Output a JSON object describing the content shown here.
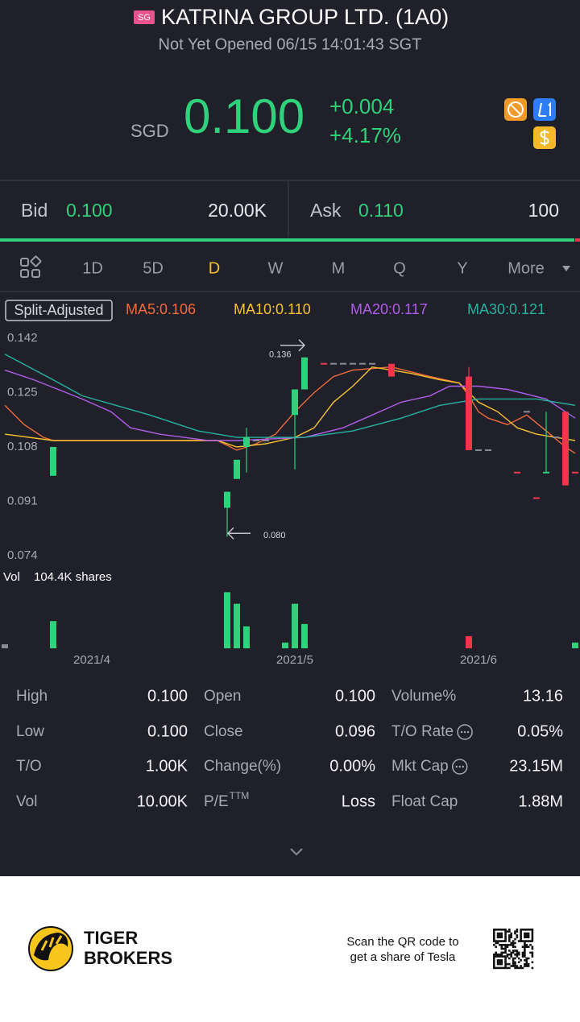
{
  "header": {
    "badge": "SG",
    "title": "KATRINA GROUP LTD. (1A0)",
    "status": "Not Yet Opened 06/15 14:01:43 SGT"
  },
  "quote": {
    "currency": "SGD",
    "price": "0.100",
    "change": "+0.004",
    "change_pct": "+4.17%"
  },
  "bid_ask": {
    "bid_label": "Bid",
    "bid": "0.100",
    "bid_size": "20.00K",
    "ask_label": "Ask",
    "ask": "0.110",
    "ask_size": "100"
  },
  "tabs": [
    "1D",
    "5D",
    "D",
    "W",
    "M",
    "Q",
    "Y",
    "More"
  ],
  "active_tab": 2,
  "chart_data": {
    "type": "candlestick",
    "split_label": "Split-Adjusted",
    "xlim": [
      -0.5,
      59.5
    ],
    "xticks": [
      {
        "value": 9,
        "label": "2021/4"
      },
      {
        "value": 30,
        "label": "2021/5"
      },
      {
        "value": 49,
        "label": "2021/6"
      }
    ],
    "ylim": [
      0.072,
      0.145
    ],
    "yticks": [
      0.142,
      0.125,
      0.108,
      0.091,
      0.074
    ],
    "annotations": [
      {
        "text": "0.136",
        "x": 31,
        "y": 0.136
      },
      {
        "text": "0.080",
        "x": 23,
        "y": 0.08
      }
    ],
    "candles": [
      {
        "x": 5,
        "open": 0.099,
        "high": 0.108,
        "low": 0.099,
        "close": 0.108,
        "color": "#2fd27a"
      },
      {
        "x": 23,
        "open": 0.089,
        "high": 0.094,
        "low": 0.08,
        "close": 0.094,
        "color": "#2fd27a"
      },
      {
        "x": 24,
        "open": 0.098,
        "high": 0.104,
        "low": 0.098,
        "close": 0.104,
        "color": "#2fd27a"
      },
      {
        "x": 25,
        "open": 0.108,
        "high": 0.114,
        "low": 0.1,
        "close": 0.111,
        "color": "#2fd27a"
      },
      {
        "x": 26,
        "open": 0.11,
        "high": 0.11,
        "low": 0.11,
        "close": 0.11,
        "color": "#8a8b93"
      },
      {
        "x": 27,
        "open": 0.11,
        "high": 0.11,
        "low": 0.11,
        "close": 0.11,
        "color": "#8a8b93"
      },
      {
        "x": 30,
        "open": 0.118,
        "high": 0.126,
        "low": 0.101,
        "close": 0.126,
        "color": "#2fd27a"
      },
      {
        "x": 31,
        "open": 0.126,
        "high": 0.136,
        "low": 0.126,
        "close": 0.136,
        "color": "#2fd27a"
      },
      {
        "x": 33,
        "open": 0.134,
        "high": 0.134,
        "low": 0.134,
        "close": 0.134,
        "color": "#f0364a"
      },
      {
        "x": 34,
        "open": 0.134,
        "high": 0.134,
        "low": 0.134,
        "close": 0.134,
        "color": "#8a8b93"
      },
      {
        "x": 35,
        "open": 0.134,
        "high": 0.134,
        "low": 0.134,
        "close": 0.134,
        "color": "#8a8b93"
      },
      {
        "x": 36,
        "open": 0.134,
        "high": 0.134,
        "low": 0.134,
        "close": 0.134,
        "color": "#8a8b93"
      },
      {
        "x": 37,
        "open": 0.134,
        "high": 0.134,
        "low": 0.134,
        "close": 0.134,
        "color": "#8a8b93"
      },
      {
        "x": 38,
        "open": 0.134,
        "high": 0.134,
        "low": 0.134,
        "close": 0.134,
        "color": "#8a8b93"
      },
      {
        "x": 40,
        "open": 0.134,
        "high": 0.134,
        "low": 0.13,
        "close": 0.13,
        "color": "#f0364a"
      },
      {
        "x": 48,
        "open": 0.13,
        "high": 0.133,
        "low": 0.107,
        "close": 0.107,
        "color": "#f0364a"
      },
      {
        "x": 49,
        "open": 0.107,
        "high": 0.107,
        "low": 0.107,
        "close": 0.107,
        "color": "#8a8b93"
      },
      {
        "x": 50,
        "open": 0.107,
        "high": 0.107,
        "low": 0.107,
        "close": 0.107,
        "color": "#8a8b93"
      },
      {
        "x": 53,
        "open": 0.1,
        "high": 0.1,
        "low": 0.1,
        "close": 0.1,
        "color": "#f0364a"
      },
      {
        "x": 54,
        "open": 0.119,
        "high": 0.119,
        "low": 0.119,
        "close": 0.119,
        "color": "#8a8b93"
      },
      {
        "x": 55,
        "open": 0.092,
        "high": 0.092,
        "low": 0.092,
        "close": 0.092,
        "color": "#f0364a"
      },
      {
        "x": 56,
        "open": 0.1,
        "high": 0.119,
        "low": 0.1,
        "close": 0.1,
        "color": "#2fd27a"
      },
      {
        "x": 57,
        "open": 0.111,
        "high": 0.111,
        "low": 0.111,
        "close": 0.111,
        "color": "#8a8b93"
      },
      {
        "x": 58,
        "open": 0.119,
        "high": 0.119,
        "low": 0.096,
        "close": 0.096,
        "color": "#f0364a"
      },
      {
        "x": 59,
        "open": 0.1,
        "high": 0.1,
        "low": 0.1,
        "close": 0.1,
        "color": "#f0364a"
      }
    ],
    "series": [
      {
        "name": "MA5:0.106",
        "color": "#f26b3a",
        "x": [
          0,
          2,
          4,
          5,
          22,
          24,
          26,
          28,
          30,
          32,
          34,
          36,
          40,
          44,
          47,
          48,
          49,
          50,
          52,
          54,
          56,
          58,
          59
        ],
        "values": [
          0.121,
          0.115,
          0.111,
          0.11,
          0.11,
          0.107,
          0.109,
          0.112,
          0.119,
          0.125,
          0.13,
          0.132,
          0.133,
          0.13,
          0.128,
          0.124,
          0.119,
          0.117,
          0.115,
          0.118,
          0.113,
          0.108,
          0.106
        ]
      },
      {
        "name": "MA10:0.110",
        "color": "#f7c12f",
        "x": [
          0,
          5,
          22,
          24,
          27,
          30,
          32,
          34,
          36,
          38,
          40,
          42,
          45,
          47,
          49,
          51,
          53,
          55,
          57,
          59
        ],
        "values": [
          0.112,
          0.11,
          0.11,
          0.108,
          0.109,
          0.111,
          0.114,
          0.122,
          0.127,
          0.133,
          0.132,
          0.131,
          0.129,
          0.128,
          0.122,
          0.119,
          0.114,
          0.112,
          0.111,
          0.11
        ]
      },
      {
        "name": "MA20:0.117",
        "color": "#b05ee8",
        "x": [
          0,
          3,
          8,
          11,
          13,
          16,
          21,
          24,
          31,
          35,
          38,
          41,
          44,
          46,
          49,
          52,
          56,
          59
        ],
        "values": [
          0.132,
          0.129,
          0.123,
          0.119,
          0.114,
          0.112,
          0.11,
          0.11,
          0.111,
          0.114,
          0.118,
          0.122,
          0.124,
          0.127,
          0.127,
          0.126,
          0.123,
          0.117
        ]
      },
      {
        "name": "MA30:0.121",
        "color": "#26b3a0",
        "x": [
          0,
          5,
          8,
          15,
          20,
          24,
          31,
          36,
          41,
          45,
          49,
          55,
          59
        ],
        "values": [
          0.137,
          0.129,
          0.124,
          0.118,
          0.113,
          0.111,
          0.111,
          0.113,
          0.117,
          0.121,
          0.123,
          0.123,
          0.121
        ]
      }
    ],
    "volume": {
      "label": "Vol",
      "value_label": "104.4K shares",
      "ylim": [
        0,
        104.4
      ],
      "x": [
        0,
        5,
        23,
        24,
        25,
        29,
        30,
        31,
        48,
        59
      ],
      "values": [
        7,
        47,
        97,
        77,
        38,
        10,
        77,
        42,
        21,
        10
      ],
      "colors": [
        "#8a8b93",
        "#2fd27a",
        "#2fd27a",
        "#2fd27a",
        "#2fd27a",
        "#2fd27a",
        "#2fd27a",
        "#2fd27a",
        "#f0364a",
        "#2fd27a"
      ]
    }
  },
  "stats": [
    [
      {
        "label": "High",
        "value": "0.100"
      },
      {
        "label": "Open",
        "value": "0.100"
      },
      {
        "label": "Volume%",
        "value": "13.16"
      }
    ],
    [
      {
        "label": "Low",
        "value": "0.100"
      },
      {
        "label": "Close",
        "value": "0.096"
      },
      {
        "label": "T/O Rate",
        "value": "0.05%",
        "info": true
      }
    ],
    [
      {
        "label": "T/O",
        "value": "1.00K"
      },
      {
        "label": "Change(%)",
        "value": "0.00%"
      },
      {
        "label": "Mkt Cap",
        "value": "23.15M",
        "info": true
      }
    ],
    [
      {
        "label": "Vol",
        "value": "10.00K"
      },
      {
        "label": "P/E",
        "sup": "TTM",
        "value": "Loss"
      },
      {
        "label": "Float Cap",
        "value": "1.88M"
      }
    ]
  ],
  "footer": {
    "brand": [
      "TIGER",
      "BROKERS"
    ],
    "promo": [
      "Scan the QR code to",
      "get a share of Tesla"
    ]
  }
}
